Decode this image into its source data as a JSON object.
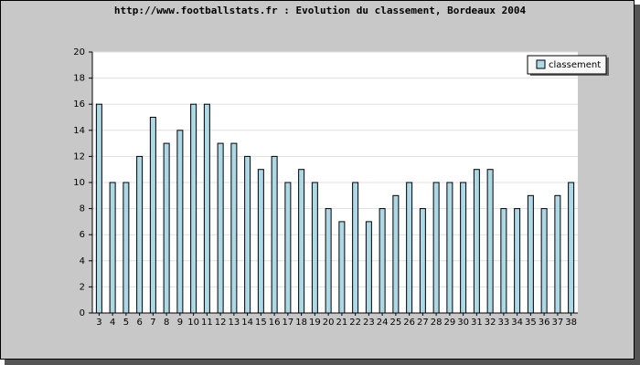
{
  "chart_data": {
    "type": "bar",
    "title": "http://www.footballstats.fr : Evolution du classement, Bordeaux 2004",
    "categories": [
      "3",
      "4",
      "5",
      "6",
      "7",
      "8",
      "9",
      "10",
      "11",
      "12",
      "13",
      "14",
      "15",
      "16",
      "17",
      "18",
      "19",
      "20",
      "21",
      "22",
      "23",
      "24",
      "25",
      "26",
      "27",
      "28",
      "29",
      "30",
      "31",
      "32",
      "33",
      "34",
      "35",
      "36",
      "37",
      "38"
    ],
    "series": [
      {
        "name": "classement",
        "color": "#add8e6",
        "values": [
          16,
          10,
          10,
          12,
          15,
          13,
          14,
          16,
          16,
          13,
          13,
          12,
          11,
          12,
          10,
          11,
          10,
          8,
          7,
          10,
          7,
          8,
          9,
          10,
          8,
          10,
          10,
          10,
          11,
          11,
          8,
          8,
          9,
          8,
          9,
          10
        ]
      }
    ],
    "ylim": [
      0,
      20
    ],
    "yticks": [
      0,
      2,
      4,
      6,
      8,
      10,
      12,
      14,
      16,
      18,
      20
    ],
    "grid": true,
    "legend": "top-right"
  }
}
